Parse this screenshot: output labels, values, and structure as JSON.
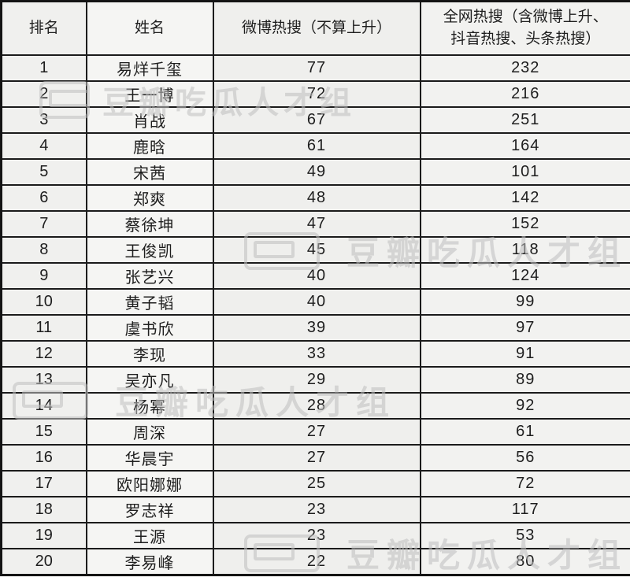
{
  "chart_data": {
    "type": "table",
    "columns": [
      "排名",
      "姓名",
      "微博热搜（不算上升）",
      "全网热搜（含微博上升、抖音热搜、头条热搜）"
    ],
    "rows": [
      [
        "1",
        "易烊千玺",
        "77",
        "232"
      ],
      [
        "2",
        "王一博",
        "72",
        "216"
      ],
      [
        "3",
        "肖战",
        "67",
        "251"
      ],
      [
        "4",
        "鹿晗",
        "61",
        "164"
      ],
      [
        "5",
        "宋茜",
        "49",
        "101"
      ],
      [
        "6",
        "郑爽",
        "48",
        "142"
      ],
      [
        "7",
        "蔡徐坤",
        "47",
        "152"
      ],
      [
        "8",
        "王俊凯",
        "45",
        "118"
      ],
      [
        "9",
        "张艺兴",
        "40",
        "124"
      ],
      [
        "10",
        "黄子韬",
        "40",
        "99"
      ],
      [
        "11",
        "虞书欣",
        "39",
        "97"
      ],
      [
        "12",
        "李现",
        "33",
        "91"
      ],
      [
        "13",
        "吴亦凡",
        "29",
        "89"
      ],
      [
        "14",
        "杨幂",
        "28",
        "92"
      ],
      [
        "15",
        "周深",
        "27",
        "61"
      ],
      [
        "16",
        "华晨宇",
        "27",
        "56"
      ],
      [
        "17",
        "欧阳娜娜",
        "25",
        "72"
      ],
      [
        "18",
        "罗志祥",
        "23",
        "117"
      ],
      [
        "19",
        "王源",
        "23",
        "53"
      ],
      [
        "20",
        "李易峰",
        "22",
        "80"
      ]
    ]
  },
  "table": {
    "header4_lines": [
      "全网热搜（含微博上升、",
      "抖音热搜、头条热搜）"
    ]
  },
  "watermark": {
    "text": "豆瓣吃瓜人才组"
  },
  "colors": {
    "border": "#1b1b1b",
    "background": "#f5f5f3",
    "text": "#1e1e1e",
    "watermark": "#bfbfbf"
  }
}
